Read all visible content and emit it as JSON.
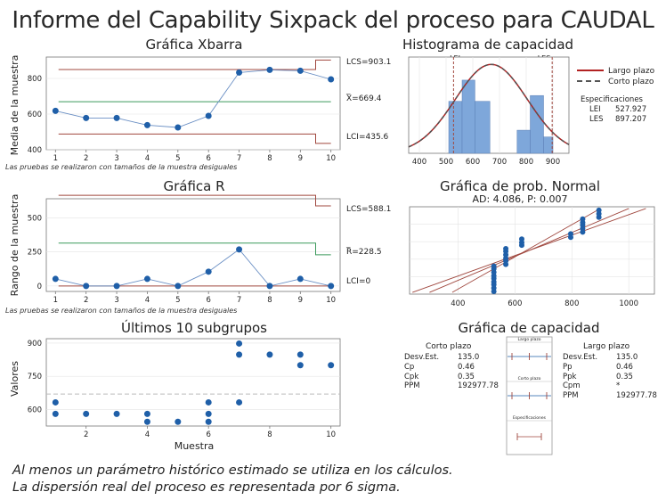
{
  "title": "Informe del Capability Sixpack del proceso para CAUDAL",
  "colors": {
    "point": "#1f5fa8",
    "limit": "#a0483f",
    "center": "#3c9a5c",
    "hist_bar": "#7ea7da",
    "overall": "#b22222",
    "within": "#555555",
    "grid": "#e4e4e4"
  },
  "footnotes": [
    "Al menos un parámetro histórico estimado se utiliza en los cálculos.",
    "La dispersión real del proceso es representada por 6 sigma."
  ],
  "chart_data": [
    {
      "type": "line",
      "title": "Gráfica Xbarra",
      "ylabel": "Media de la muestra",
      "x": [
        1,
        2,
        3,
        4,
        5,
        6,
        7,
        8,
        9,
        10
      ],
      "values": [
        618,
        578,
        578,
        538,
        525,
        590,
        833,
        848,
        843,
        795
      ],
      "ylim": [
        400,
        920
      ],
      "yticks": [
        400,
        600,
        800
      ],
      "ucl": [
        850,
        850,
        850,
        850,
        850,
        850,
        850,
        850,
        850,
        903.1
      ],
      "lcl": [
        488,
        488,
        488,
        488,
        488,
        488,
        488,
        488,
        488,
        435.6
      ],
      "center": 669.4,
      "labels": {
        "ucl": "LCS=903.1",
        "center_bar": "_",
        "center": "X=669.4",
        "lcl": "LCI=435.6"
      },
      "note": "Las pruebas se realizaron con tamaños de la muestra desiguales"
    },
    {
      "type": "line",
      "title": "Gráfica R",
      "ylabel": "Rango de la muestra",
      "x": [
        1,
        2,
        3,
        4,
        5,
        6,
        7,
        8,
        9,
        10
      ],
      "values": [
        52,
        0,
        0,
        52,
        0,
        105,
        268,
        0,
        52,
        0
      ],
      "ylim": [
        -40,
        640
      ],
      "yticks": [
        0,
        250,
        500
      ],
      "ucl": [
        665,
        665,
        665,
        665,
        665,
        665,
        665,
        665,
        665,
        588.1
      ],
      "center_line": [
        315,
        315,
        315,
        315,
        315,
        315,
        315,
        315,
        315,
        228.5
      ],
      "lcl": [
        0,
        0,
        0,
        0,
        0,
        0,
        0,
        0,
        0,
        0
      ],
      "labels": {
        "ucl": "LCS=588.1",
        "center_bar": "_",
        "center": "R=228.5",
        "lcl": "LCI=0"
      },
      "note": "Las pruebas se realizaron con tamaños de la muestra desiguales"
    },
    {
      "type": "scatter",
      "title": "Últimos 10 subgrupos",
      "xlabel": "Muestra",
      "ylabel": "Valores",
      "points": [
        [
          1,
          632
        ],
        [
          1,
          580
        ],
        [
          2,
          580
        ],
        [
          3,
          580
        ],
        [
          4,
          580
        ],
        [
          4,
          544
        ],
        [
          5,
          544
        ],
        [
          6,
          632
        ],
        [
          6,
          580
        ],
        [
          6,
          544
        ],
        [
          7,
          898
        ],
        [
          7,
          848
        ],
        [
          7,
          632
        ],
        [
          8,
          848
        ],
        [
          9,
          848
        ],
        [
          9,
          800
        ],
        [
          10,
          800
        ]
      ],
      "mean": 669.4,
      "xlim": [
        0.7,
        10.3
      ],
      "ylim": [
        525,
        920
      ],
      "xticks": [
        2,
        4,
        6,
        8,
        10
      ],
      "yticks": [
        600,
        750,
        900
      ]
    },
    {
      "type": "bar",
      "title": "Histograma de capacidad",
      "bin_edges": [
        510,
        560,
        608,
        664,
        766,
        815,
        865,
        900
      ],
      "heights": [
        0.54,
        0.76,
        0.54,
        0,
        0.24,
        0.6,
        0.17
      ],
      "density_scale": 0.0032,
      "xlim": [
        360,
        960
      ],
      "xticks": [
        400,
        500,
        600,
        700,
        800,
        900
      ],
      "lsl": 527.927,
      "usl": 897.207,
      "lsl_label": "LEI",
      "usl_label": "LES",
      "curve_mean": 669.4,
      "curve_sd": 135.0,
      "legend": [
        "Largo plazo",
        "Corto plazo"
      ],
      "spec_title": "Especificaciones",
      "spec_rows": [
        [
          "LEI",
          "527.927"
        ],
        [
          "LES",
          "897.207"
        ]
      ]
    },
    {
      "type": "scatter",
      "title": "Gráfica de prob. Normal",
      "subtitle": "AD: 4.086, P: 0.007",
      "xlim": [
        230,
        1090
      ],
      "xticks": [
        400,
        600,
        800,
        1000
      ],
      "points": [
        [
          526,
          0.03
        ],
        [
          526,
          0.07
        ],
        [
          526,
          0.11
        ],
        [
          526,
          0.14
        ],
        [
          526,
          0.18
        ],
        [
          526,
          0.21
        ],
        [
          526,
          0.25
        ],
        [
          526,
          0.29
        ],
        [
          526,
          0.32
        ],
        [
          568,
          0.34
        ],
        [
          568,
          0.38
        ],
        [
          568,
          0.41
        ],
        [
          568,
          0.45
        ],
        [
          568,
          0.49
        ],
        [
          568,
          0.52
        ],
        [
          624,
          0.56
        ],
        [
          624,
          0.59
        ],
        [
          624,
          0.63
        ],
        [
          796,
          0.65
        ],
        [
          796,
          0.69
        ],
        [
          838,
          0.71
        ],
        [
          838,
          0.75
        ],
        [
          838,
          0.79
        ],
        [
          838,
          0.82
        ],
        [
          838,
          0.86
        ],
        [
          895,
          0.88
        ],
        [
          895,
          0.92
        ],
        [
          895,
          0.96
        ]
      ],
      "fit": [
        [
          300,
          0.02
        ],
        [
          1000,
          0.98
        ]
      ],
      "band_upper": [
        [
          380,
          0.02
        ],
        [
          900,
          0.98
        ]
      ],
      "band_lower": [
        [
          240,
          0.02
        ],
        [
          1060,
          0.98
        ]
      ]
    },
    {
      "type": "table",
      "title": "Gráfica de capacidad",
      "short_term": {
        "heading": "Corto plazo",
        "rows": [
          [
            "Desv.Est.",
            "135.0"
          ],
          [
            "Cp",
            "0.46"
          ],
          [
            "Cpk",
            "0.35"
          ],
          [
            "PPM",
            "192977.78"
          ]
        ]
      },
      "long_term": {
        "heading": "Largo plazo",
        "rows": [
          [
            "Desv.Est.",
            "135.0"
          ],
          [
            "Pp",
            "0.46"
          ],
          [
            "Ppk",
            "0.35"
          ],
          [
            "Cpm",
            "*"
          ],
          [
            "PPM",
            "192977.78"
          ]
        ]
      },
      "mini_labels": [
        "Largo plazo",
        "Corto plazo",
        "Especificaciones"
      ]
    }
  ]
}
